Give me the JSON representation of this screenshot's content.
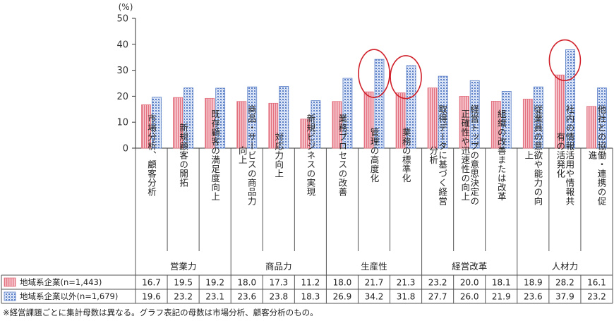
{
  "chart_data": {
    "type": "bar",
    "unit": "(%)",
    "ylim": [
      0,
      50
    ],
    "yticks": [
      0,
      10,
      20,
      30,
      40,
      50
    ],
    "grid": false,
    "categories": [
      "市場分析、顧客分析",
      "新規顧客の開拓",
      "既存顧客の満足度向上",
      "商品・サービスの商品力向上",
      "対応力向上",
      "新規ビジネスの実現",
      "業務プロセスの改善",
      "管理の高度化",
      "業務の標準化",
      "取得データに基づく経営分析",
      "経営トップの意思決定の正確性や迅速性の向上",
      "組織の改善または改革",
      "従業員の意欲や能力の向上",
      "社内の情報活用や情報共有の活発化",
      "他社との協働・連携の促進"
    ],
    "groups": [
      {
        "label": "営業力",
        "start": 0,
        "end": 2
      },
      {
        "label": "商品力",
        "start": 3,
        "end": 5
      },
      {
        "label": "生産性",
        "start": 6,
        "end": 8
      },
      {
        "label": "経営改革",
        "start": 9,
        "end": 11
      },
      {
        "label": "人材力",
        "start": 12,
        "end": 14
      }
    ],
    "series": [
      {
        "name": "地域系企業(n=1,443)",
        "color": "#e2707e",
        "values": [
          16.7,
          19.5,
          19.2,
          18.0,
          17.3,
          11.2,
          18.0,
          21.7,
          21.3,
          23.2,
          20.0,
          18.1,
          18.9,
          28.2,
          16.1
        ]
      },
      {
        "name": "地域系企業以外(n=1,679)",
        "color": "#5b7fc7",
        "values": [
          19.6,
          23.2,
          23.1,
          23.6,
          23.8,
          18.3,
          26.9,
          34.2,
          31.8,
          27.7,
          26.0,
          21.9,
          23.6,
          37.9,
          23.2
        ]
      }
    ],
    "highlighted_categories": [
      7,
      8,
      13
    ],
    "highlight_color": "#d0202a"
  },
  "footnote": "※経営課題ごとに集計母数は異なる。グラフ表記の母数は市場分析、顧客分析のもの。"
}
